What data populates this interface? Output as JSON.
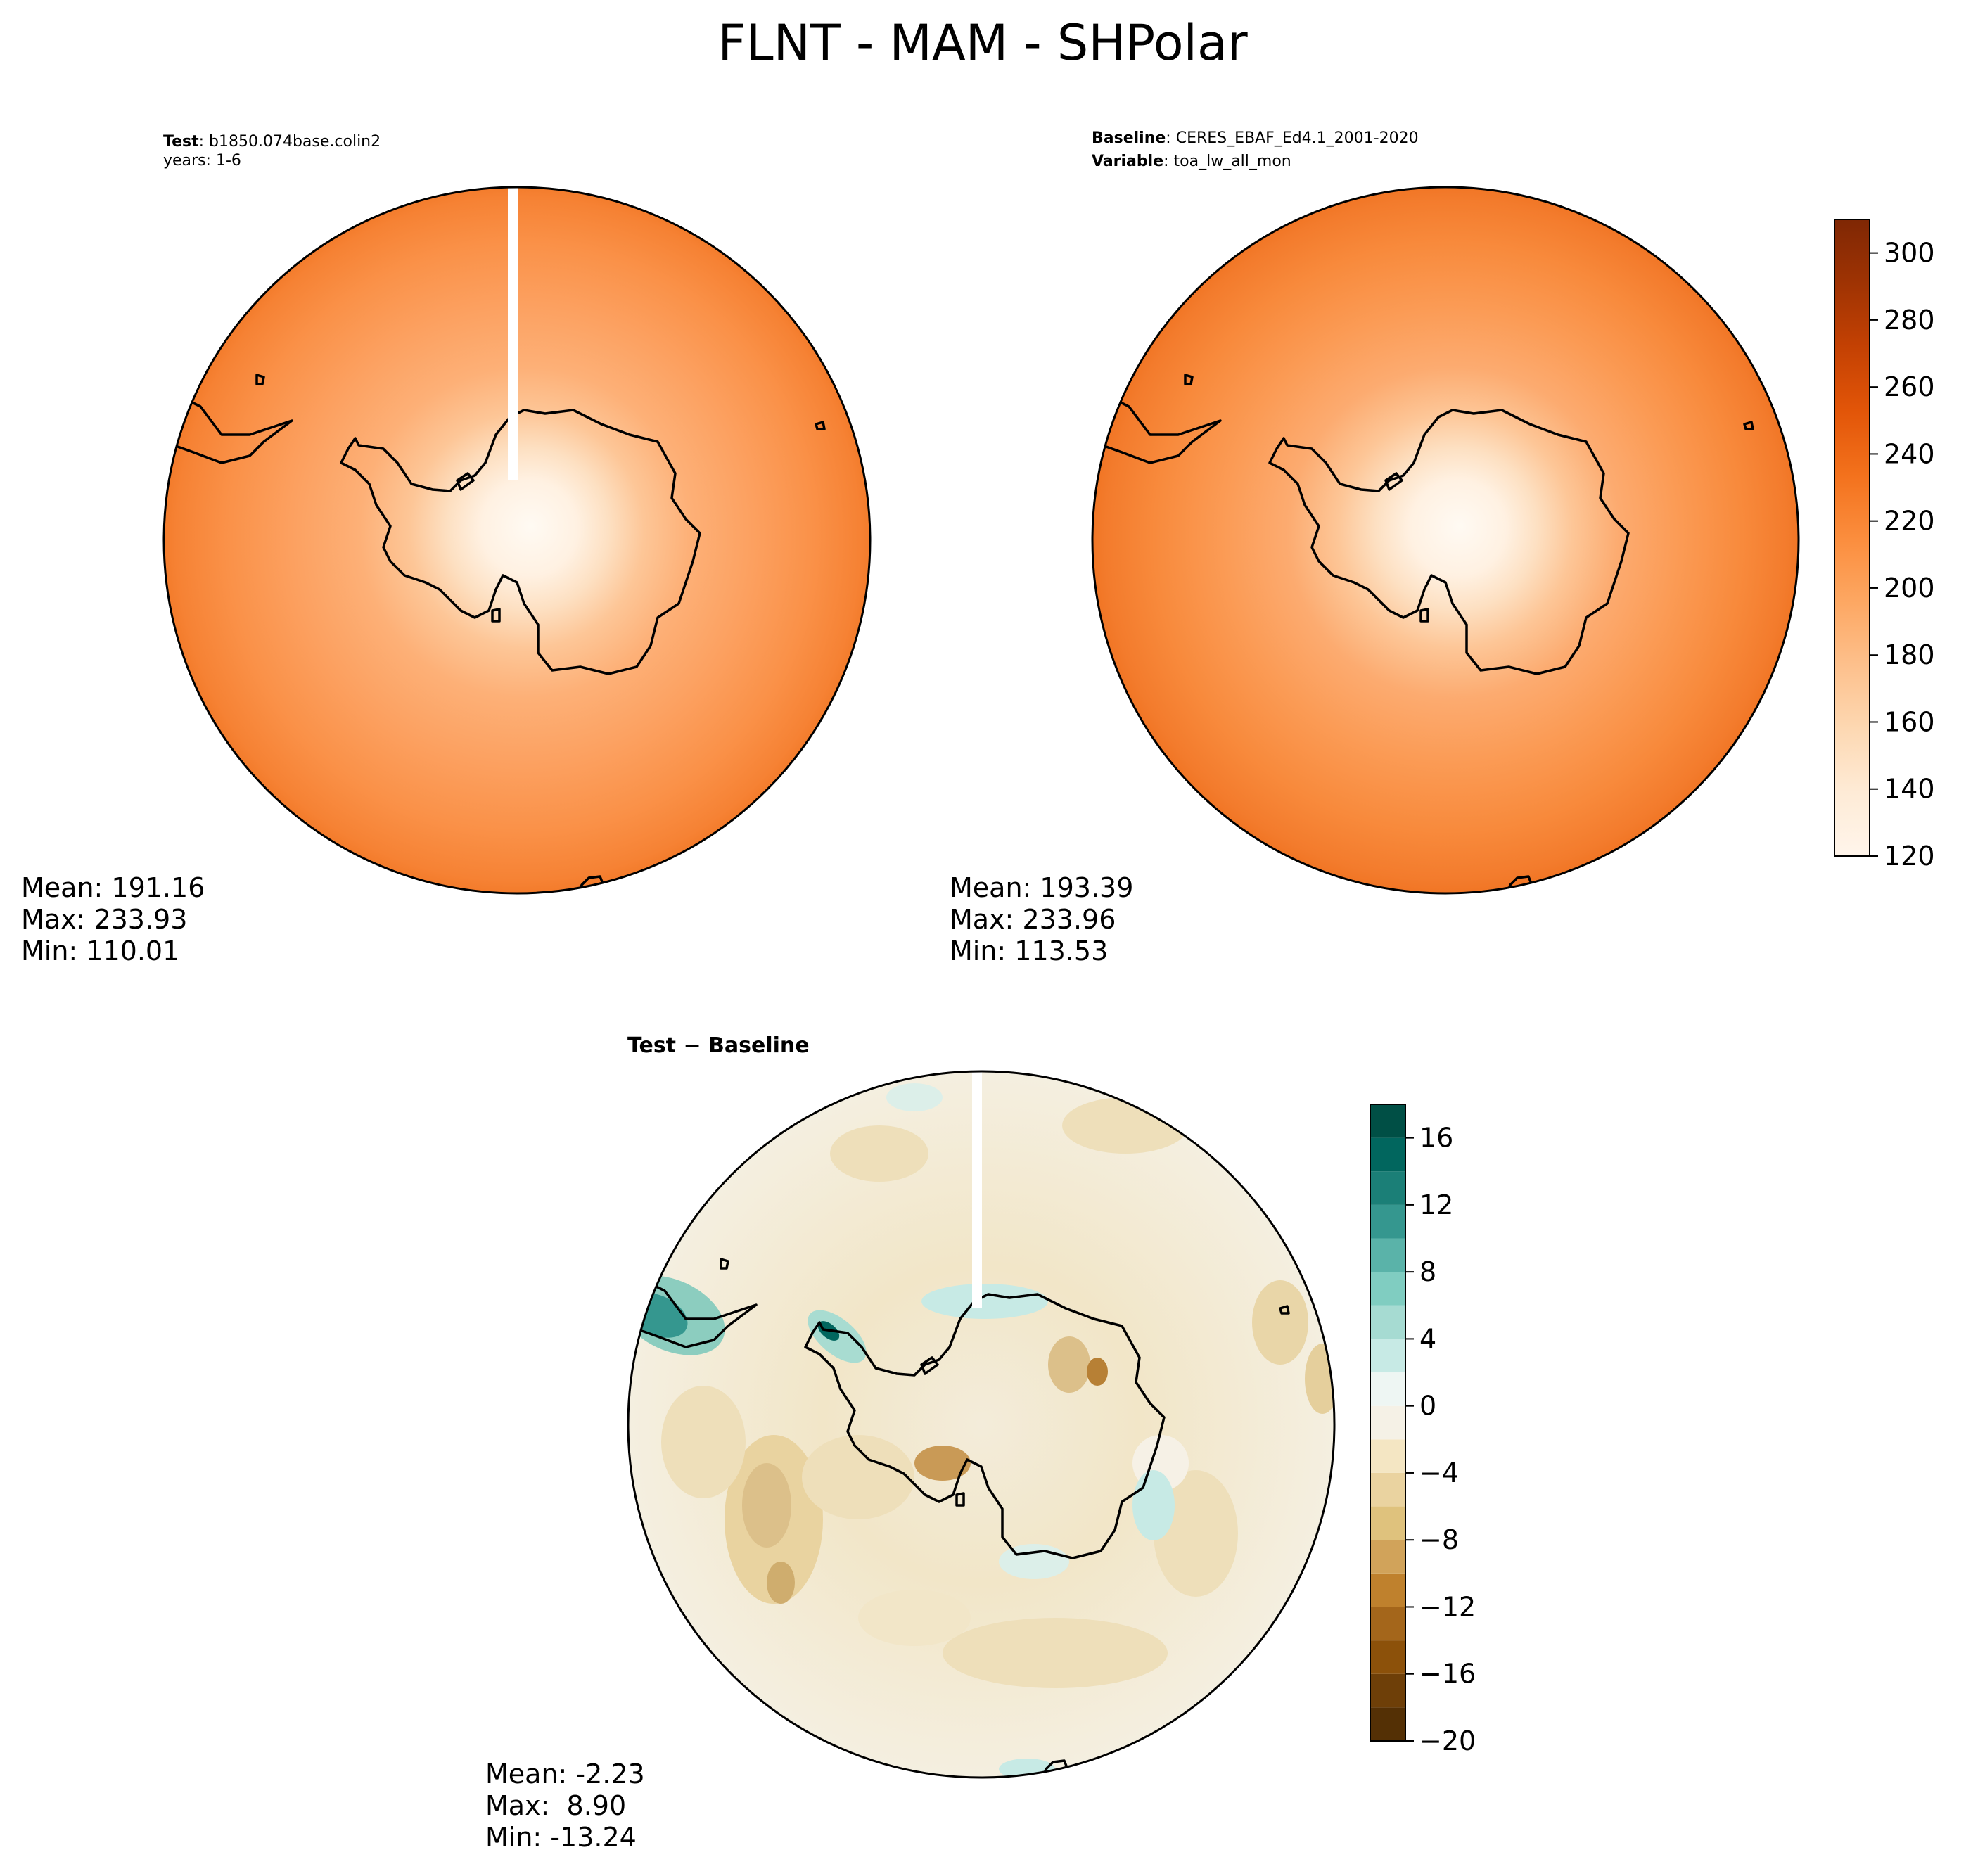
{
  "figure": {
    "title": "FLNT - MAM - SHPolar"
  },
  "colors": {
    "coast": "#000000",
    "oranges": [
      "#fff5eb",
      "#fee9d4",
      "#fdd7b0",
      "#fdc592",
      "#fdae6b",
      "#fd9a4e",
      "#f8893a",
      "#f16913",
      "#e05206",
      "#c64102",
      "#a53603",
      "#7f2704"
    ],
    "brbg": [
      "#003c30",
      "#01665e",
      "#35978f",
      "#80cdc1",
      "#c7eae5",
      "#f5f5f5",
      "#f6e8c3",
      "#dfc27d",
      "#bf812d",
      "#8c510a",
      "#543005"
    ]
  },
  "panels": {
    "test": {
      "header_key_1": "Test",
      "header_val_1": ": b1850.074base.colin2",
      "header_line_2": "years: 1-6",
      "mean": "Mean: 191.16",
      "max": "Max: 233.93",
      "min": "Min: 110.01"
    },
    "baseline": {
      "header_key_1": "Baseline",
      "header_val_1": ": CERES_EBAF_Ed4.1_2001-2020",
      "header_key_2": "Variable",
      "header_val_2": ": toa_lw_all_mon",
      "mean": "Mean: 193.39",
      "max": "Max: 233.96",
      "min": "Min: 113.53"
    },
    "diff": {
      "header": "Test − Baseline",
      "mean": "Mean: -2.23",
      "max": "Max:  8.90",
      "min": "Min: -13.24"
    }
  },
  "colorbars": {
    "main": {
      "range": [
        120,
        310
      ],
      "ticks": [
        "120",
        "140",
        "160",
        "180",
        "200",
        "220",
        "240",
        "260",
        "280",
        "300"
      ]
    },
    "diff": {
      "range": [
        -20,
        18
      ],
      "ticks": [
        "−20",
        "−16",
        "−12",
        "−8",
        "−4",
        "0",
        "4",
        "8",
        "12",
        "16"
      ]
    }
  }
}
